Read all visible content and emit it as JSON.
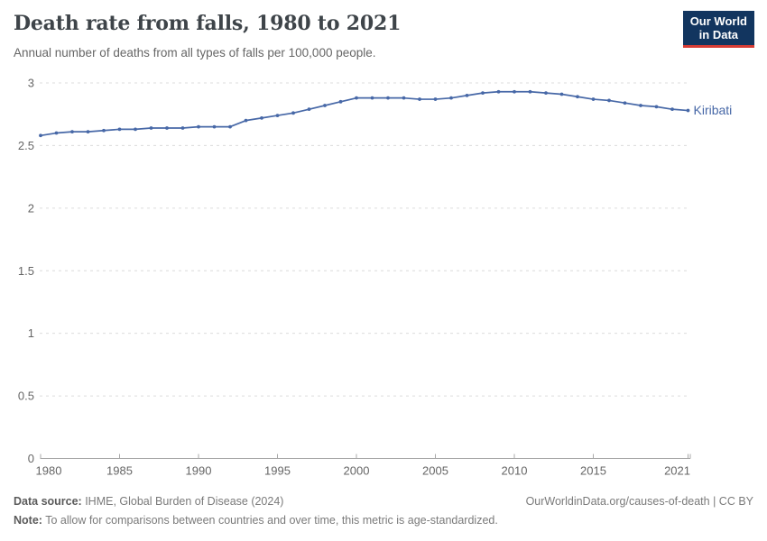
{
  "header": {
    "title": "Death rate from falls, 1980 to 2021",
    "subtitle": "Annual number of deaths from all types of falls per 100,000 people."
  },
  "logo": {
    "line1": "Our World",
    "line2": "in Data",
    "bg_color": "#12355f",
    "stripe_color": "#d73c34"
  },
  "chart_data": {
    "type": "line",
    "title": "Death rate from falls, 1980 to 2021",
    "xlabel": "",
    "ylabel": "",
    "grid": "horizontal-dashed",
    "legend_position": "end-of-line-label",
    "xlim": [
      1980,
      2021
    ],
    "ylim": [
      0,
      3
    ],
    "xticks": [
      1980,
      1985,
      1990,
      1995,
      2000,
      2005,
      2010,
      2015,
      2021
    ],
    "yticks": [
      0,
      0.5,
      1,
      1.5,
      2,
      2.5,
      3
    ],
    "x": [
      1980,
      1981,
      1982,
      1983,
      1984,
      1985,
      1986,
      1987,
      1988,
      1989,
      1990,
      1991,
      1992,
      1993,
      1994,
      1995,
      1996,
      1997,
      1998,
      1999,
      2000,
      2001,
      2002,
      2003,
      2004,
      2005,
      2006,
      2007,
      2008,
      2009,
      2010,
      2011,
      2012,
      2013,
      2014,
      2015,
      2016,
      2017,
      2018,
      2019,
      2020,
      2021
    ],
    "series": [
      {
        "name": "Kiribati",
        "color": "#4768a7",
        "values": [
          2.58,
          2.6,
          2.61,
          2.61,
          2.62,
          2.63,
          2.63,
          2.64,
          2.64,
          2.64,
          2.65,
          2.65,
          2.65,
          2.7,
          2.72,
          2.74,
          2.76,
          2.79,
          2.82,
          2.85,
          2.88,
          2.88,
          2.88,
          2.88,
          2.87,
          2.87,
          2.88,
          2.9,
          2.92,
          2.93,
          2.93,
          2.93,
          2.92,
          2.91,
          2.89,
          2.87,
          2.86,
          2.84,
          2.82,
          2.81,
          2.79,
          2.78
        ]
      }
    ],
    "colors": {
      "gridline": "#dcdcdc",
      "axis": "#a8a8a8",
      "tick_label": "#666666"
    }
  },
  "footer": {
    "source_label": "Data source:",
    "source_text": " IHME, Global Burden of Disease (2024)",
    "note_label": "Note:",
    "note_text": " To allow for comparisons between countries and over time, this metric is age-standardized.",
    "attribution": "OurWorldinData.org/causes-of-death | CC BY"
  }
}
